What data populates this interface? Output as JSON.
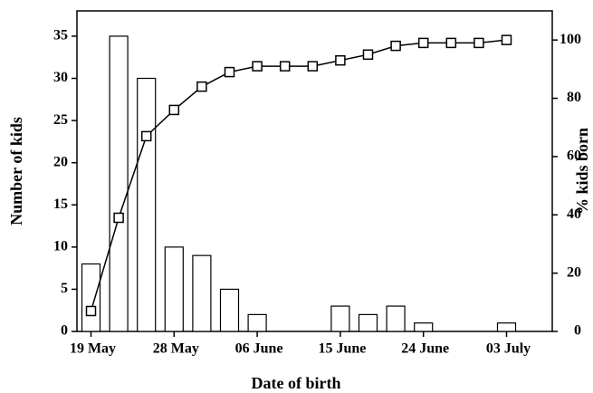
{
  "chart_data": {
    "type": "combo",
    "x_label": "Date of birth",
    "y_label": "Number of kids",
    "y2_label": "% kids born",
    "categories": [
      "19 May",
      null,
      null,
      "28 May",
      null,
      null,
      "06 June",
      null,
      null,
      "15 June",
      null,
      null,
      "24 June",
      null,
      null,
      "03 July"
    ],
    "series": [
      {
        "type": "bar",
        "color": "#ffffff",
        "values": [
          8,
          35,
          30,
          10,
          9,
          5,
          2,
          0,
          0,
          3,
          2,
          3,
          1,
          0,
          0,
          1
        ]
      },
      {
        "type": "line",
        "axis": "y2",
        "color": "#000000",
        "values": [
          7,
          39,
          67,
          76,
          84,
          89,
          91,
          91,
          91,
          93,
          95,
          98,
          99,
          99,
          99,
          100
        ]
      }
    ],
    "ylim": [
      0,
      38
    ],
    "yticks": [
      0,
      5,
      10,
      15,
      20,
      25,
      30,
      35
    ],
    "y2lim": [
      0,
      110
    ],
    "y2ticks": [
      0,
      20,
      40,
      60,
      80,
      100
    ],
    "grid": false
  }
}
